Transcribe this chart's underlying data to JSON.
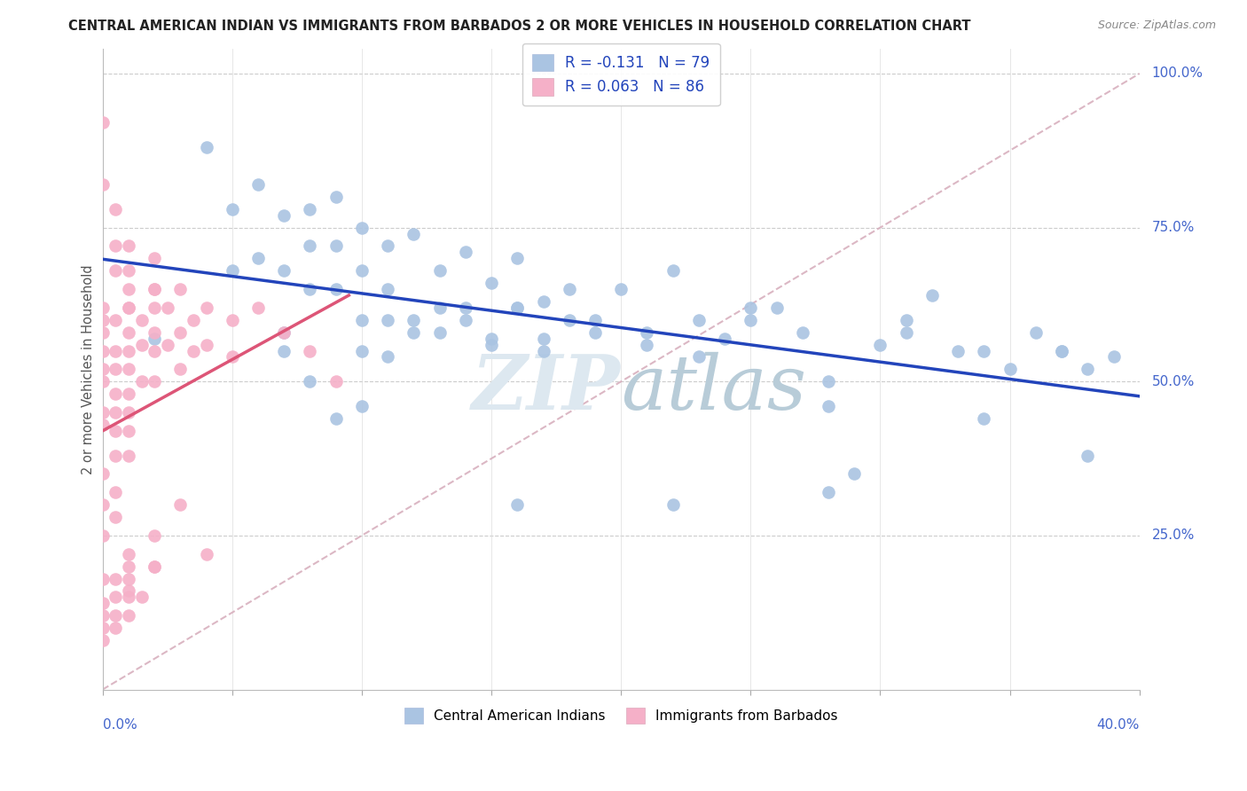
{
  "title": "CENTRAL AMERICAN INDIAN VS IMMIGRANTS FROM BARBADOS 2 OR MORE VEHICLES IN HOUSEHOLD CORRELATION CHART",
  "source": "Source: ZipAtlas.com",
  "ylabel": "2 or more Vehicles in Household",
  "xlim": [
    0.0,
    0.4
  ],
  "ylim": [
    0.0,
    1.04
  ],
  "blue_R": -0.131,
  "blue_N": 79,
  "pink_R": 0.063,
  "pink_N": 86,
  "blue_color": "#aac4e2",
  "pink_color": "#f5b0c8",
  "blue_line_color": "#2244bb",
  "pink_line_color": "#dd5577",
  "dashed_line_color": "#d8b0be",
  "watermark_color": "#dde8f0",
  "legend_label_blue": "Central American Indians",
  "legend_label_pink": "Immigrants from Barbados",
  "blue_scatter_x": [
    0.02,
    0.04,
    0.05,
    0.05,
    0.06,
    0.06,
    0.07,
    0.07,
    0.07,
    0.08,
    0.08,
    0.08,
    0.09,
    0.09,
    0.09,
    0.1,
    0.1,
    0.1,
    0.1,
    0.11,
    0.11,
    0.11,
    0.12,
    0.12,
    0.13,
    0.13,
    0.14,
    0.14,
    0.15,
    0.15,
    0.16,
    0.16,
    0.17,
    0.17,
    0.18,
    0.19,
    0.2,
    0.21,
    0.22,
    0.23,
    0.24,
    0.25,
    0.26,
    0.27,
    0.28,
    0.29,
    0.3,
    0.31,
    0.32,
    0.33,
    0.34,
    0.35,
    0.36,
    0.37,
    0.38,
    0.39,
    0.07,
    0.08,
    0.09,
    0.1,
    0.11,
    0.12,
    0.13,
    0.14,
    0.15,
    0.16,
    0.17,
    0.18,
    0.19,
    0.21,
    0.23,
    0.25,
    0.28,
    0.31,
    0.34,
    0.37,
    0.22,
    0.16,
    0.28,
    0.38
  ],
  "blue_scatter_y": [
    0.57,
    0.88,
    0.78,
    0.68,
    0.82,
    0.7,
    0.77,
    0.68,
    0.58,
    0.72,
    0.65,
    0.78,
    0.8,
    0.72,
    0.65,
    0.75,
    0.68,
    0.6,
    0.55,
    0.72,
    0.65,
    0.6,
    0.74,
    0.6,
    0.68,
    0.58,
    0.71,
    0.62,
    0.66,
    0.57,
    0.7,
    0.62,
    0.63,
    0.57,
    0.65,
    0.6,
    0.65,
    0.58,
    0.68,
    0.6,
    0.57,
    0.62,
    0.62,
    0.58,
    0.5,
    0.35,
    0.56,
    0.6,
    0.64,
    0.55,
    0.55,
    0.52,
    0.58,
    0.55,
    0.52,
    0.54,
    0.55,
    0.5,
    0.44,
    0.46,
    0.54,
    0.58,
    0.62,
    0.6,
    0.56,
    0.62,
    0.55,
    0.6,
    0.58,
    0.56,
    0.54,
    0.6,
    0.46,
    0.58,
    0.44,
    0.55,
    0.3,
    0.3,
    0.32,
    0.38
  ],
  "pink_scatter_x": [
    0.0,
    0.0,
    0.0,
    0.0,
    0.0,
    0.0,
    0.0,
    0.0,
    0.005,
    0.005,
    0.005,
    0.005,
    0.005,
    0.005,
    0.005,
    0.01,
    0.01,
    0.01,
    0.01,
    0.01,
    0.01,
    0.01,
    0.01,
    0.015,
    0.015,
    0.015,
    0.02,
    0.02,
    0.02,
    0.02,
    0.02,
    0.025,
    0.025,
    0.03,
    0.03,
    0.03,
    0.035,
    0.035,
    0.04,
    0.04,
    0.05,
    0.05,
    0.06,
    0.07,
    0.08,
    0.09,
    0.0,
    0.0,
    0.005,
    0.005,
    0.005,
    0.01,
    0.01,
    0.01,
    0.01,
    0.02,
    0.02,
    0.03,
    0.04,
    0.0,
    0.0,
    0.0,
    0.005,
    0.005,
    0.01,
    0.01,
    0.01,
    0.02,
    0.0,
    0.0,
    0.005,
    0.01,
    0.015,
    0.0,
    0.0,
    0.0,
    0.005,
    0.005,
    0.005,
    0.01,
    0.01,
    0.02,
    0.02
  ],
  "pink_scatter_y": [
    0.62,
    0.6,
    0.58,
    0.55,
    0.52,
    0.5,
    0.45,
    0.43,
    0.6,
    0.55,
    0.52,
    0.48,
    0.45,
    0.42,
    0.38,
    0.62,
    0.58,
    0.55,
    0.52,
    0.48,
    0.45,
    0.42,
    0.38,
    0.6,
    0.56,
    0.5,
    0.65,
    0.62,
    0.58,
    0.55,
    0.5,
    0.62,
    0.56,
    0.65,
    0.58,
    0.52,
    0.6,
    0.55,
    0.62,
    0.56,
    0.6,
    0.54,
    0.62,
    0.58,
    0.55,
    0.5,
    0.92,
    0.82,
    0.78,
    0.72,
    0.68,
    0.72,
    0.68,
    0.65,
    0.62,
    0.7,
    0.65,
    0.3,
    0.22,
    0.35,
    0.3,
    0.25,
    0.32,
    0.28,
    0.22,
    0.18,
    0.15,
    0.2,
    0.12,
    0.08,
    0.1,
    0.12,
    0.15,
    0.18,
    0.14,
    0.1,
    0.18,
    0.15,
    0.12,
    0.2,
    0.16,
    0.25,
    0.2
  ]
}
